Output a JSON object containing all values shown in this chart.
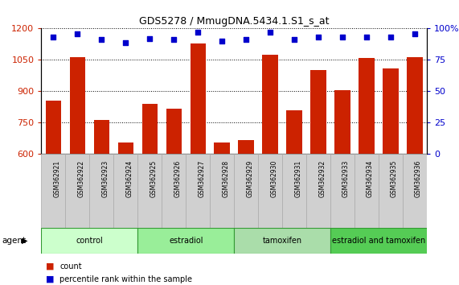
{
  "title": "GDS5278 / MmugDNA.5434.1.S1_s_at",
  "samples": [
    "GSM362921",
    "GSM362922",
    "GSM362923",
    "GSM362924",
    "GSM362925",
    "GSM362926",
    "GSM362927",
    "GSM362928",
    "GSM362929",
    "GSM362930",
    "GSM362931",
    "GSM362932",
    "GSM362933",
    "GSM362934",
    "GSM362935",
    "GSM362936"
  ],
  "counts": [
    855,
    1063,
    762,
    655,
    840,
    815,
    1130,
    655,
    668,
    1073,
    810,
    1000,
    905,
    1060,
    1010,
    1063
  ],
  "percentiles": [
    93,
    96,
    91,
    89,
    92,
    91,
    97,
    90,
    91,
    97,
    91,
    93,
    93,
    93,
    93,
    96
  ],
  "groups": [
    {
      "label": "control",
      "start": 0,
      "end": 4,
      "color": "#ccffcc"
    },
    {
      "label": "estradiol",
      "start": 4,
      "end": 8,
      "color": "#99ee99"
    },
    {
      "label": "tamoxifen",
      "start": 8,
      "end": 12,
      "color": "#aaddaa"
    },
    {
      "label": "estradiol and tamoxifen",
      "start": 12,
      "end": 16,
      "color": "#55cc55"
    }
  ],
  "ylim_left": [
    600,
    1200
  ],
  "ylim_right": [
    0,
    100
  ],
  "yticks_left": [
    600,
    750,
    900,
    1050,
    1200
  ],
  "yticks_right": [
    0,
    25,
    50,
    75,
    100
  ],
  "bar_color": "#cc2200",
  "dot_color": "#0000cc",
  "bar_width": 0.65,
  "grid_color": "black",
  "bg_color": "#ffffff",
  "plot_bg": "#ffffff",
  "agent_label": "agent",
  "legend_count": "count",
  "legend_percentile": "percentile rank within the sample",
  "left_axis_color": "#cc2200",
  "right_axis_color": "#0000cc",
  "xlabel_gray": "#d0d0d0",
  "xlabel_border": "#aaaaaa",
  "group_border_color": "#339933"
}
